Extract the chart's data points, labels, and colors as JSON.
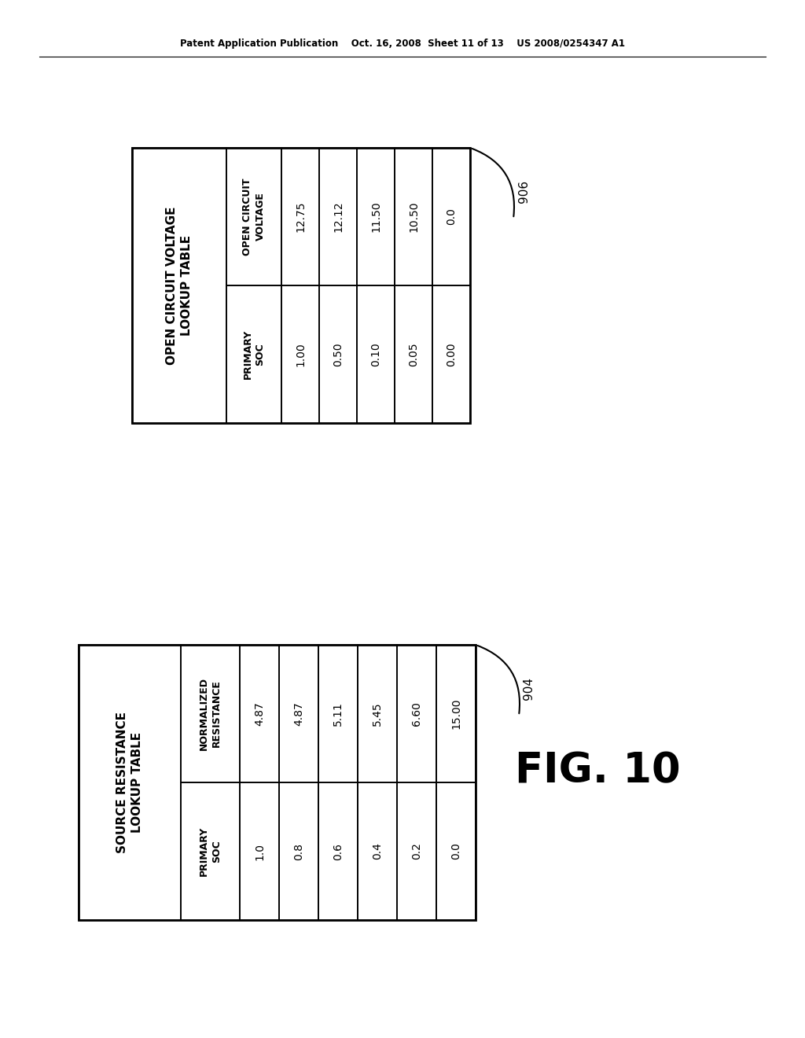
{
  "background_color": "#ffffff",
  "header_text": "Patent Application Publication    Oct. 16, 2008  Sheet 11 of 13    US 2008/0254347 A1",
  "fig_label": "FIG. 10",
  "label_906": "906",
  "label_904": "904",
  "table1_title_line1": "OPEN CIRCUIT VOLTAGE",
  "table1_title_line2": "LOOKUP TABLE",
  "table1_col1_header_line1": "PRIMARY",
  "table1_col1_header_line2": "SOC",
  "table1_col2_header_line1": "OPEN CIRCUIT",
  "table1_col2_header_line2": "VOLTAGE",
  "table1_col1_data": [
    "1.00",
    "0.50",
    "0.10",
    "0.05",
    "0.00"
  ],
  "table1_col2_data": [
    "12.75",
    "12.12",
    "11.50",
    "10.50",
    "0.0"
  ],
  "table2_title_line1": "SOURCE RESISTANCE",
  "table2_title_line2": "LOOKUP TABLE",
  "table2_col1_header_line1": "PRIMARY",
  "table2_col1_header_line2": "SOC",
  "table2_col2_header_line1": "NORMALIZED",
  "table2_col2_header_line2": "RESISTANCE",
  "table2_col1_data": [
    "1.0",
    "0.8",
    "0.6",
    "0.4",
    "0.2",
    "0.0"
  ],
  "table2_col2_data": [
    "4.87",
    "4.87",
    "5.11",
    "5.45",
    "6.60",
    "15.00"
  ]
}
